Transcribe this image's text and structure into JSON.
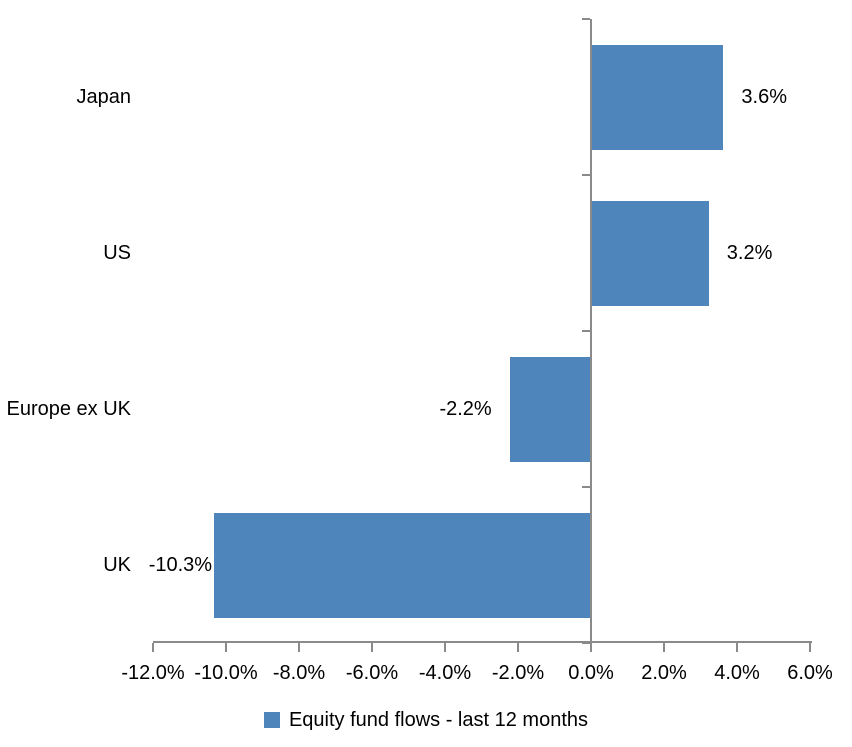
{
  "chart_data": {
    "type": "bar",
    "orientation": "horizontal",
    "title": "",
    "categories": [
      "Japan",
      "US",
      "Europe ex UK",
      "UK"
    ],
    "values": [
      3.6,
      3.2,
      -2.2,
      -10.3
    ],
    "data_labels": [
      "3.6%",
      "3.2%",
      "-2.2%",
      "-10.3%"
    ],
    "series_name": "Equity fund flows - last 12 months",
    "series_color": "#4E86BC",
    "axis_color": "#8A8A8A",
    "text_color": "#000000",
    "xlim": [
      -12,
      6
    ],
    "x_ticks": [
      -12,
      -10,
      -8,
      -6,
      -4,
      -2,
      0,
      2,
      4,
      6
    ],
    "x_tick_labels": [
      "-12.0%",
      "-10.0%",
      "-8.0%",
      "-6.0%",
      "-4.0%",
      "-2.0%",
      "0.0%",
      "2.0%",
      "4.0%",
      "6.0%"
    ],
    "grid": false,
    "legend_position": "bottom",
    "label_gaps": [
      18,
      18,
      18,
      2
    ]
  },
  "legend": {
    "label": "Equity fund flows - last 12 months"
  }
}
